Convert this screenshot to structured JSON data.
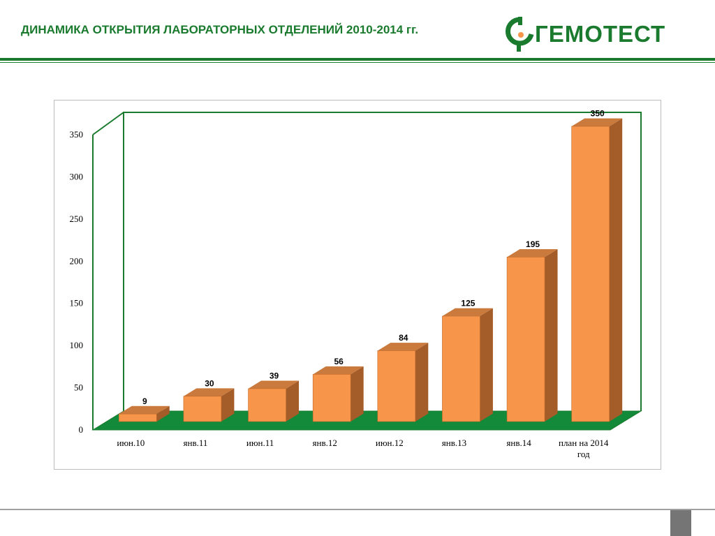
{
  "slide": {
    "title": "ДИНАМИКА ОТКРЫТИЯ ЛАБОРАТОРНЫХ ОТДЕЛЕНИЙ 2010-2014 гг."
  },
  "logo": {
    "text": "ГЕМОТЕСТ",
    "icon": "gemotest-logo-mark"
  },
  "colors": {
    "brand_green": "#1a7a2e",
    "bar_front": "#f7954a",
    "bar_side": "#a45c28",
    "bar_top": "#c97a3c",
    "floor": "#128a3a"
  },
  "chart_data": {
    "type": "bar",
    "title": "",
    "xlabel": "",
    "ylabel": "",
    "categories": [
      "июн.10",
      "янв.11",
      "июн.11",
      "янв.12",
      "июн.12",
      "янв.13",
      "янв.14",
      "план на 2014 год"
    ],
    "values": [
      9,
      30,
      39,
      56,
      84,
      125,
      195,
      350
    ],
    "data_labels": [
      "9",
      "30",
      "39",
      "56",
      "84",
      "125",
      "195",
      "350"
    ],
    "ylim": [
      0,
      350
    ],
    "yticks": [
      0,
      50,
      100,
      150,
      200,
      250,
      300,
      350
    ],
    "ytick_labels": [
      "0",
      "50",
      "100",
      "150",
      "200",
      "250",
      "300",
      "350"
    ],
    "grid": false,
    "legend": "none",
    "style": "3d"
  }
}
